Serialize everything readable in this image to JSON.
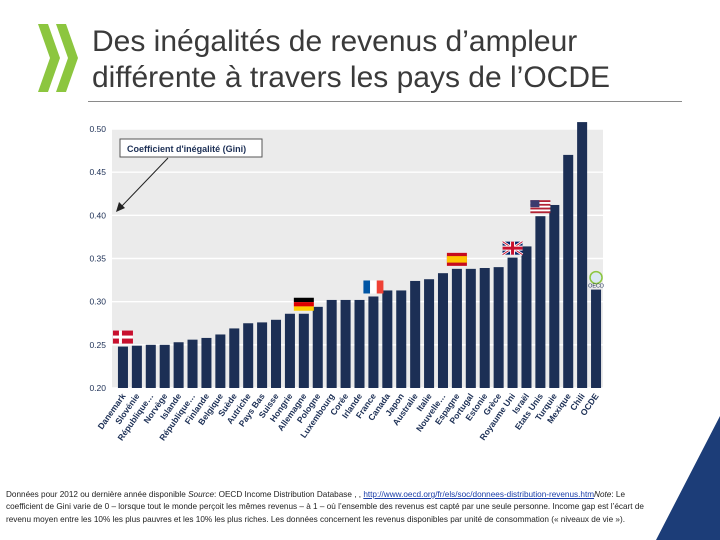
{
  "slide": {
    "title_line1": "Des inégalités de revenus d’ampleur",
    "title_line2": "différente à travers les pays de l’OCDE"
  },
  "chart_data": {
    "type": "bar",
    "annotation": "Coefficient d'inégalité (Gini)",
    "ylim": [
      0.2,
      0.5
    ],
    "yticks": [
      "0.50",
      "0.45",
      "0.40",
      "0.35",
      "0.30",
      "0.25",
      "0.20"
    ],
    "ytick_values": [
      0.5,
      0.45,
      0.4,
      0.35,
      0.3,
      0.25,
      0.2
    ],
    "colors": {
      "bar": "#1c2f55",
      "grid": "#ffffff",
      "plot_bg": "#ebebeb",
      "axis_label": "#1c2f55",
      "annotation_text": "#1c2f55",
      "annotation_border": "#555555"
    },
    "categories": [
      "Danemark",
      "Slovénie",
      "République…",
      "Norvège",
      "Islande",
      "République…",
      "Finlande",
      "Belgique",
      "Suède",
      "Autriche",
      "Pays Bas",
      "Suisse",
      "Hongrie",
      "Allemagne",
      "Pologne",
      "Luxembourg",
      "Corée",
      "Irlande",
      "France",
      "Canada",
      "Japon",
      "Australie",
      "Italie",
      "Nouvelle…",
      "Espagne",
      "Portugal",
      "Estonie",
      "Grèce",
      "Royaume Uni",
      "Israël",
      "Etats Unis",
      "Turquie",
      "Mexique",
      "Chili",
      "OCDE"
    ],
    "values": [
      0.248,
      0.249,
      0.25,
      0.25,
      0.253,
      0.256,
      0.258,
      0.262,
      0.269,
      0.275,
      0.276,
      0.279,
      0.286,
      0.286,
      0.294,
      0.302,
      0.302,
      0.302,
      0.306,
      0.313,
      0.313,
      0.324,
      0.326,
      0.333,
      0.338,
      0.338,
      0.339,
      0.34,
      0.351,
      0.364,
      0.399,
      0.412,
      0.47,
      0.508,
      0.314
    ]
  },
  "flags": [
    {
      "name": "denmark-flag",
      "country": "Danemark"
    },
    {
      "name": "germany-flag",
      "country": "Allemagne"
    },
    {
      "name": "france-flag",
      "country": "France"
    },
    {
      "name": "spain-flag",
      "country": "Espagne"
    },
    {
      "name": "uk-flag",
      "country": "Royaume Uni"
    },
    {
      "name": "usa-flag",
      "country": "Etats Unis"
    },
    {
      "name": "oecd-logo",
      "country": "OCDE",
      "label": "OECD"
    }
  ],
  "note": {
    "part1": "Données pour 2012 ou dernière année disponible ",
    "source_label": "Source",
    "part2": ": OECD Income Distribution Database , , ",
    "link": "http://www.oecd.org/fr/els/soc/donnees-distribution-revenus.htm",
    "note_label": "Note",
    "part3": ": Le coefficient de Gini varie de 0 – lorsque tout le monde perçoit les mêmes revenus – à 1 – où l’ensemble des revenus est capté par une seule personne. Income gap est l’écart de revenu moyen entre les 10% les plus pauvres et les 10% les plus riches. Les données concernent les revenus disponibles par unité de consommation (« niveaux de vie »)."
  }
}
